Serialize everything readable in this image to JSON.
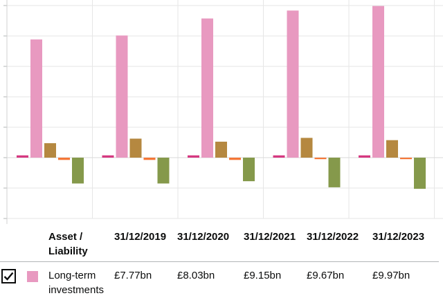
{
  "chart_data": {
    "type": "bar",
    "categories": [
      "31/12/2019",
      "31/12/2020",
      "31/12/2021",
      "31/12/2022",
      "31/12/2023"
    ],
    "ylim": [
      -4,
      10
    ],
    "grid": true,
    "series": [
      {
        "name": "",
        "color": "#d53880",
        "values": [
          0.15,
          0.15,
          0.15,
          0.15,
          0.15
        ]
      },
      {
        "name": "Long-term investments",
        "color": "#e899c0",
        "values": [
          7.77,
          8.03,
          9.15,
          9.67,
          9.97
        ]
      },
      {
        "name": "",
        "color": "#b58840",
        "values": [
          0.95,
          1.25,
          1.05,
          1.3,
          1.15
        ]
      },
      {
        "name": "",
        "color": "#f47738",
        "values": [
          -0.15,
          -0.15,
          -0.15,
          -0.1,
          -0.1
        ]
      },
      {
        "name": "",
        "color": "#85994b",
        "values": [
          -1.7,
          -1.7,
          -1.55,
          -1.95,
          -2.05
        ]
      }
    ]
  },
  "table": {
    "header_asset_line1": "Asset /",
    "header_asset_line2": "Liability",
    "row": {
      "checked": true,
      "label_line1": "Long-term",
      "label_line2": "investments",
      "swatch_color": "#e899c0",
      "values": [
        "£7.77bn",
        "£8.03bn",
        "£9.15bn",
        "£9.67bn",
        "£9.97bn"
      ]
    }
  }
}
